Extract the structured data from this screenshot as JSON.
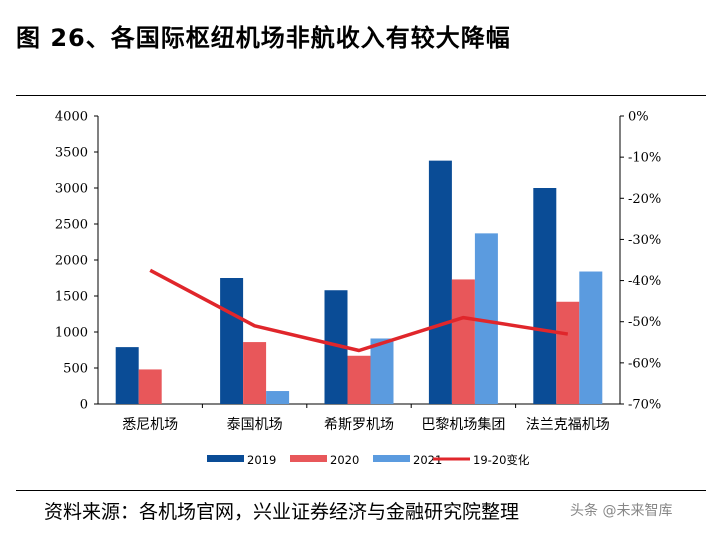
{
  "title": "图 26、各国际枢纽机场非航收入有较大降幅",
  "source": "资料来源：各机场官网，兴业证券经济与金融研究院整理",
  "watermark": "头条 @未来智库",
  "colors": {
    "s2019": "#0a4c96",
    "s2020": "#e8575a",
    "s2021": "#5b9bdf",
    "change": "#e0262b"
  },
  "chart_data": {
    "type": "bar",
    "categories": [
      "悉尼机场",
      "泰国机场",
      "希斯罗机场",
      "巴黎机场集团",
      "法兰克福机场"
    ],
    "series": [
      {
        "name": "2019",
        "type": "bar",
        "axis": "left",
        "values": [
          790,
          1750,
          1580,
          3380,
          3000
        ]
      },
      {
        "name": "2020",
        "type": "bar",
        "axis": "left",
        "values": [
          480,
          860,
          670,
          1730,
          1420
        ]
      },
      {
        "name": "2021",
        "type": "bar",
        "axis": "left",
        "values": [
          null,
          180,
          910,
          2370,
          1840
        ]
      },
      {
        "name": "19-20变化",
        "type": "line",
        "axis": "right",
        "values": [
          -37.5,
          -51,
          -57,
          -49,
          -53
        ]
      }
    ],
    "ylim": [
      0,
      4000
    ],
    "yticks": [
      "0",
      "500",
      "1000",
      "1500",
      "2000",
      "2500",
      "3000",
      "3500",
      "4000"
    ],
    "y2lim": [
      -70,
      0
    ],
    "y2ticks": [
      "0%",
      "-10%",
      "-20%",
      "-30%",
      "-40%",
      "-50%",
      "-60%",
      "-70%"
    ],
    "legend_position": "bottom",
    "grid": false
  }
}
